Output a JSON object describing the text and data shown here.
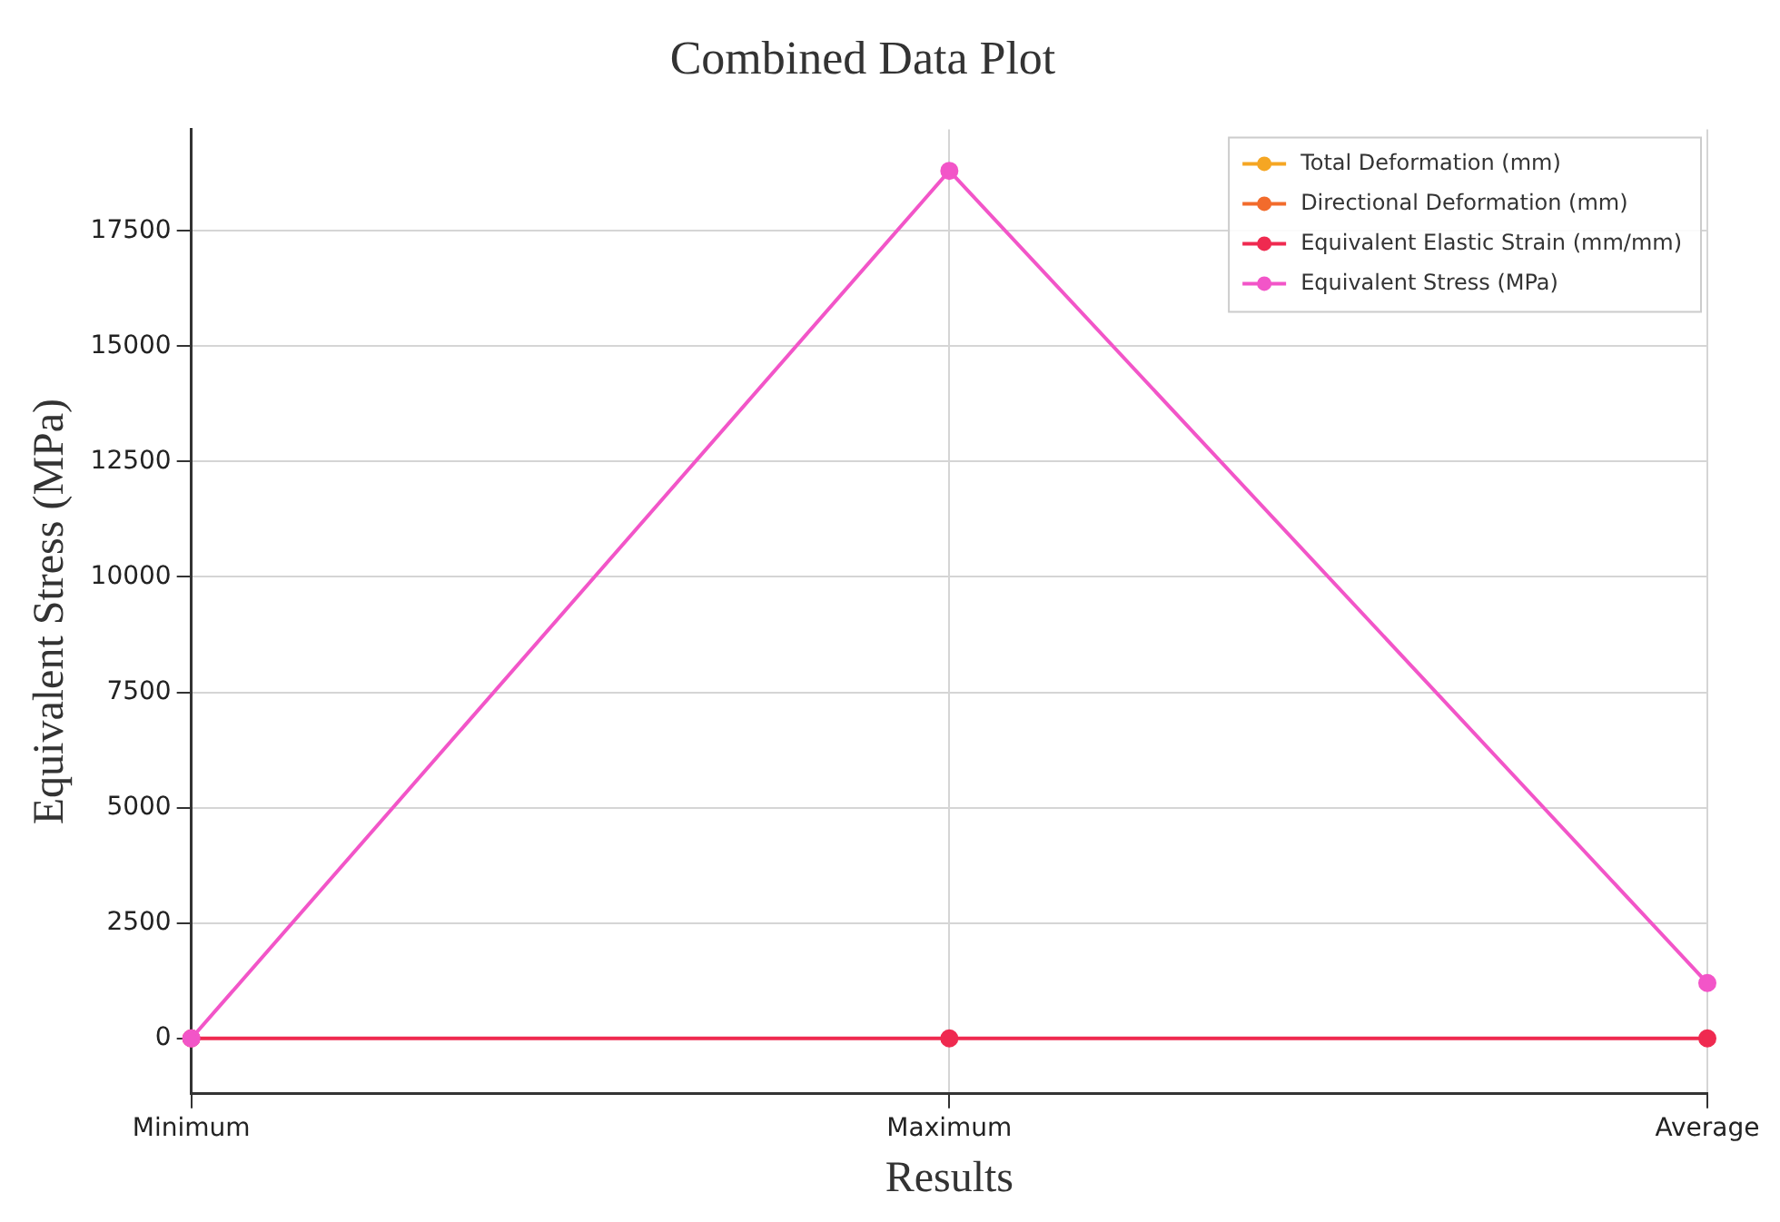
{
  "chart_data": {
    "type": "line",
    "title": "Combined Data Plot",
    "xlabel": "Results",
    "ylabel": "Equivalent Stress (MPa)",
    "categories": [
      "Minimum",
      "Maximum",
      "Average"
    ],
    "series": [
      {
        "name": "Total Deformation (mm)",
        "color": "#f5a623",
        "values": [
          null,
          null,
          null
        ]
      },
      {
        "name": "Directional Deformation (mm)",
        "color": "#f26b2c",
        "values": [
          null,
          null,
          null
        ]
      },
      {
        "name": "Equivalent Elastic Strain (mm/mm)",
        "color": "#ef2a50",
        "values": [
          0,
          0,
          0
        ]
      },
      {
        "name": "Equivalent Stress (MPa)",
        "color": "#f255c8",
        "values": [
          0,
          18800,
          1200
        ]
      }
    ],
    "ylim": [
      -1200,
      19700
    ],
    "yticks": [
      0,
      2500,
      5000,
      7500,
      10000,
      12500,
      15000,
      17500
    ],
    "grid": true,
    "legend": "top right",
    "marker": "circle",
    "line_style": "solid"
  }
}
